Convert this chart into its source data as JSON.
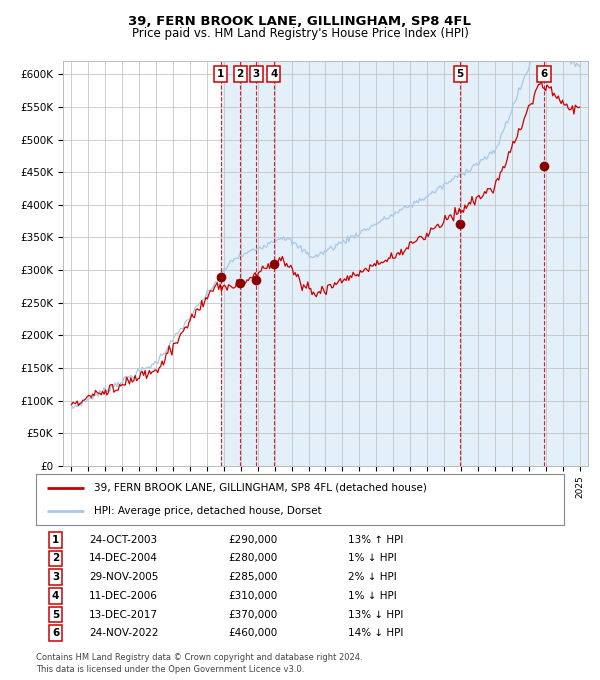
{
  "title1": "39, FERN BROOK LANE, GILLINGHAM, SP8 4FL",
  "title2": "Price paid vs. HM Land Registry's House Price Index (HPI)",
  "ylim": [
    0,
    620000
  ],
  "yticks": [
    0,
    50000,
    100000,
    150000,
    200000,
    250000,
    300000,
    350000,
    400000,
    450000,
    500000,
    550000,
    600000
  ],
  "ytick_labels": [
    "£0",
    "£50K",
    "£100K",
    "£150K",
    "£200K",
    "£250K",
    "£300K",
    "£350K",
    "£400K",
    "£450K",
    "£500K",
    "£550K",
    "£600K"
  ],
  "grid_color": "#bbbbbb",
  "hpi_color": "#a8c8e8",
  "price_color": "#cc0000",
  "sale_marker_color": "#880000",
  "sale_dates_x": [
    2003.82,
    2004.96,
    2005.91,
    2006.95,
    2017.96,
    2022.9
  ],
  "sale_prices_y": [
    290000,
    280000,
    285000,
    310000,
    370000,
    460000
  ],
  "sale_labels": [
    "1",
    "2",
    "3",
    "4",
    "5",
    "6"
  ],
  "legend_line1": "39, FERN BROOK LANE, GILLINGHAM, SP8 4FL (detached house)",
  "legend_line2": "HPI: Average price, detached house, Dorset",
  "table_data": [
    [
      "1",
      "24-OCT-2003",
      "£290,000",
      "13% ↑ HPI"
    ],
    [
      "2",
      "14-DEC-2004",
      "£280,000",
      "1% ↓ HPI"
    ],
    [
      "3",
      "29-NOV-2005",
      "£285,000",
      "2% ↓ HPI"
    ],
    [
      "4",
      "11-DEC-2006",
      "£310,000",
      "1% ↓ HPI"
    ],
    [
      "5",
      "13-DEC-2017",
      "£370,000",
      "13% ↓ HPI"
    ],
    [
      "6",
      "24-NOV-2022",
      "£460,000",
      "14% ↓ HPI"
    ]
  ],
  "footnote1": "Contains HM Land Registry data © Crown copyright and database right 2024.",
  "footnote2": "This data is licensed under the Open Government Licence v3.0.",
  "xmin": 1995,
  "xmax": 2025
}
